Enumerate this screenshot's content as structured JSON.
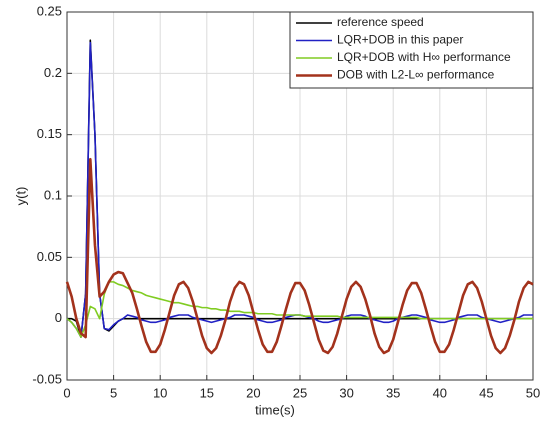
{
  "chart_data": {
    "type": "line",
    "xlabel": "time(s)",
    "ylabel": "y(t)",
    "x": [
      0,
      0.5,
      1,
      1.5,
      2,
      2.5,
      3,
      3.5,
      4,
      4.5,
      5,
      5.5,
      6,
      6.5,
      7,
      7.5,
      8,
      8.5,
      9,
      9.5,
      10,
      10.5,
      11,
      11.5,
      12,
      12.5,
      13,
      13.5,
      14,
      14.5,
      15,
      15.5,
      16,
      16.5,
      17,
      17.5,
      18,
      18.5,
      19,
      19.5,
      20,
      20.5,
      21,
      21.5,
      22,
      22.5,
      23,
      23.5,
      24,
      24.5,
      25,
      25.5,
      26,
      26.5,
      27,
      27.5,
      28,
      28.5,
      29,
      29.5,
      30,
      30.5,
      31,
      31.5,
      32,
      32.5,
      33,
      33.5,
      34,
      34.5,
      35,
      35.5,
      36,
      36.5,
      37,
      37.5,
      38,
      38.5,
      39,
      39.5,
      40,
      40.5,
      41,
      41.5,
      42,
      42.5,
      43,
      43.5,
      44,
      44.5,
      45,
      45.5,
      46,
      46.5,
      47,
      47.5,
      48,
      48.5,
      49,
      49.5,
      50
    ],
    "series": [
      {
        "name": "reference speed",
        "color": "#000000",
        "values": [
          0,
          0,
          -0.002,
          -0.015,
          0.02,
          0.227,
          0.15,
          0.02,
          -0.008,
          -0.01,
          -0.006,
          -0.002,
          0,
          0,
          0,
          0,
          0,
          0,
          0,
          0,
          0,
          0,
          0,
          0,
          0,
          0,
          0,
          0,
          0,
          0,
          0,
          0,
          0,
          0,
          0,
          0,
          0,
          0,
          0,
          0,
          0,
          0,
          0,
          0,
          0,
          0,
          0,
          0,
          0,
          0,
          0,
          0,
          0,
          0,
          0,
          0,
          0,
          0,
          0,
          0,
          0,
          0,
          0,
          0,
          0,
          0,
          0,
          0,
          0,
          0,
          0,
          0,
          0,
          0,
          0,
          0,
          0,
          0,
          0,
          0,
          0,
          0,
          0,
          0,
          0,
          0,
          0,
          0,
          0,
          0,
          0,
          0,
          0,
          0,
          0,
          0,
          0,
          0,
          0,
          0,
          0
        ]
      },
      {
        "name": "LQR+DOB in this paper",
        "color": "#2121c4",
        "values": [
          0,
          -0.003,
          -0.008,
          -0.015,
          0.02,
          0.225,
          0.15,
          0.02,
          -0.008,
          -0.009,
          -0.005,
          -0.002,
          0,
          0.003,
          0.002,
          0.001,
          -0.001,
          -0.002,
          -0.003,
          -0.003,
          -0.002,
          -0.001,
          0.001,
          0.002,
          0.003,
          0.003,
          0.003,
          0.001,
          0,
          -0.001,
          -0.002,
          -0.003,
          -0.002,
          -0.001,
          0,
          0.001,
          0.003,
          0.003,
          0.003,
          0.002,
          0.001,
          -0.001,
          -0.002,
          -0.003,
          -0.003,
          -0.002,
          -0.001,
          0.001,
          0.002,
          0.003,
          0.003,
          0.002,
          0.001,
          0,
          -0.002,
          -0.003,
          -0.003,
          -0.002,
          -0.001,
          0,
          0.002,
          0.003,
          0.003,
          0.003,
          0.002,
          0,
          -0.001,
          -0.002,
          -0.003,
          -0.003,
          -0.002,
          0,
          0.001,
          0.002,
          0.003,
          0.003,
          0.002,
          0.001,
          -0.001,
          -0.002,
          -0.003,
          -0.003,
          -0.002,
          -0.001,
          0.001,
          0.002,
          0.003,
          0.003,
          0.003,
          0.001,
          0,
          -0.001,
          -0.002,
          -0.003,
          -0.002,
          -0.001,
          0,
          0.001,
          0.003,
          0.003,
          0.003
        ]
      },
      {
        "name": "LQR+DOB with H∞ performance",
        "color": "#80cc22",
        "values": [
          0,
          -0.003,
          -0.008,
          -0.015,
          -0.005,
          0.01,
          0.008,
          0,
          0.02,
          0.03,
          0.03,
          0.028,
          0.027,
          0.025,
          0.023,
          0.022,
          0.021,
          0.019,
          0.018,
          0.017,
          0.016,
          0.015,
          0.014,
          0.013,
          0.013,
          0.012,
          0.011,
          0.01,
          0.01,
          0.009,
          0.009,
          0.008,
          0.008,
          0.007,
          0.007,
          0.006,
          0.006,
          0.006,
          0.005,
          0.005,
          0.005,
          0.004,
          0.004,
          0.004,
          0.004,
          0.003,
          0.003,
          0.003,
          0.003,
          0.003,
          0.003,
          0.002,
          0.002,
          0.002,
          0.002,
          0.002,
          0.002,
          0.002,
          0.002,
          0.001,
          0.001,
          0.001,
          0.001,
          0.001,
          0.001,
          0.001,
          0.001,
          0.001,
          0.001,
          0.001,
          0.001,
          0.001,
          0.001,
          0.001,
          0.001,
          0.001,
          0,
          0,
          0,
          0,
          0,
          0,
          0,
          0,
          0,
          0,
          0,
          0,
          0,
          0,
          0,
          0,
          0,
          0,
          0,
          0,
          0,
          0,
          0,
          0,
          0
        ]
      },
      {
        "name": "DOB with L2-L∞ performance",
        "color": "#a3321c",
        "values": [
          0.03,
          0.018,
          0,
          -0.012,
          -0.015,
          0.13,
          0.06,
          0.018,
          0.022,
          0.03,
          0.036,
          0.038,
          0.037,
          0.029,
          0.021,
          0.008,
          -0.006,
          -0.019,
          -0.027,
          -0.027,
          -0.021,
          -0.009,
          0.005,
          0.019,
          0.028,
          0.03,
          0.025,
          0.014,
          0,
          -0.014,
          -0.024,
          -0.028,
          -0.024,
          -0.014,
          -0.001,
          0.014,
          0.025,
          0.03,
          0.028,
          0.019,
          0.005,
          -0.009,
          -0.021,
          -0.027,
          -0.027,
          -0.019,
          -0.006,
          0.008,
          0.021,
          0.029,
          0.029,
          0.023,
          0.011,
          -0.003,
          -0.017,
          -0.026,
          -0.028,
          -0.023,
          -0.012,
          0.002,
          0.016,
          0.026,
          0.03,
          0.026,
          0.016,
          0.003,
          -0.012,
          -0.023,
          -0.028,
          -0.026,
          -0.017,
          -0.003,
          0.011,
          0.023,
          0.029,
          0.029,
          0.021,
          0.008,
          -0.006,
          -0.019,
          -0.027,
          -0.027,
          -0.021,
          -0.009,
          0.005,
          0.019,
          0.028,
          0.03,
          0.025,
          0.014,
          0,
          -0.014,
          -0.024,
          -0.028,
          -0.024,
          -0.014,
          -0.001,
          0.014,
          0.025,
          0.03,
          0.028
        ]
      }
    ],
    "xlim": [
      0,
      50
    ],
    "xticks": [
      0,
      5,
      10,
      15,
      20,
      25,
      30,
      35,
      40,
      45,
      50
    ],
    "ylim": [
      -0.05,
      0.25
    ],
    "yticks": [
      -0.05,
      0,
      0.05,
      0.1,
      0.15,
      0.2,
      0.25
    ],
    "grid": true,
    "legend": "upper right"
  }
}
